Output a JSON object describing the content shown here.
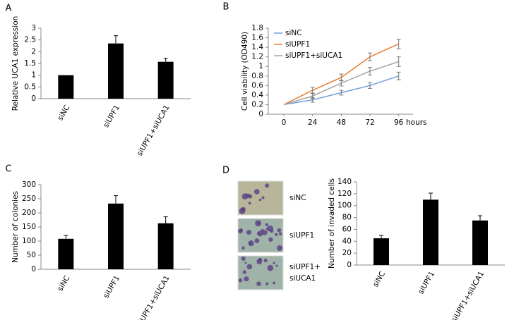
{
  "chart_data": [
    {
      "type": "bar",
      "panel_label": "A",
      "y_label": "Relative UCA1 expression",
      "categories": [
        "siNC",
        "siUPF1",
        "siUPF1+siUCA1"
      ],
      "values": [
        1,
        2.35,
        1.57
      ],
      "errors": [
        null,
        0.33,
        0.15
      ],
      "color": "#000000",
      "ylim": [
        0,
        3
      ],
      "yticks": [
        0,
        0.5,
        1,
        1.5,
        2,
        2.5,
        3
      ]
    },
    {
      "type": "line",
      "panel_label": "B",
      "y_label": "Cell viability (OD490)",
      "x_label": "hours",
      "x": [
        0,
        24,
        48,
        72,
        96
      ],
      "xlim": [
        -13,
        108
      ],
      "series": [
        {
          "name": "siNC",
          "color": "#6f9fd8",
          "values": [
            0.2,
            0.3,
            0.45,
            0.6,
            0.8
          ],
          "errors": [
            null,
            0.05,
            0.05,
            0.06,
            0.08
          ]
        },
        {
          "name": "siUPF1",
          "color": "#ed7d31",
          "values": [
            0.2,
            0.5,
            0.77,
            1.2,
            1.47
          ],
          "errors": [
            null,
            0.06,
            0.07,
            0.08,
            0.1
          ]
        },
        {
          "name": "siUPF1+siUCA1",
          "color": "#a5a5a5",
          "values": [
            0.2,
            0.38,
            0.65,
            0.9,
            1.1
          ],
          "errors": [
            null,
            0.05,
            0.06,
            0.08,
            0.1
          ]
        }
      ],
      "ylim": [
        0,
        1.8
      ],
      "yticks": [
        0,
        0.2,
        0.4,
        0.6,
        0.8,
        1,
        1.2,
        1.4,
        1.6,
        1.8
      ],
      "legend": "top-left"
    },
    {
      "type": "bar",
      "panel_label": "C",
      "y_label": "Number of colonies",
      "categories": [
        "siNC",
        "siUPF1",
        "siUPF1+siUCA1"
      ],
      "values": [
        108,
        233,
        163
      ],
      "errors": [
        12,
        28,
        23
      ],
      "color": "#000000",
      "ylim": [
        0,
        300
      ],
      "yticks": [
        0,
        50,
        100,
        150,
        200,
        250,
        300
      ]
    },
    {
      "type": "bar",
      "panel_label": "D",
      "y_label": "Number of invaded cells",
      "image_labels": [
        [
          "siNC"
        ],
        [
          "siUPF1"
        ],
        [
          "siUPF1+",
          "siUCA1"
        ]
      ],
      "categories": [
        "siNC",
        "siUPF1",
        "siUPF1+siUCA1"
      ],
      "values": [
        45,
        110,
        75
      ],
      "errors": [
        5,
        11,
        8
      ],
      "color": "#000000",
      "ylim": [
        0,
        140
      ],
      "yticks": [
        0,
        20,
        40,
        60,
        80,
        100,
        120,
        140
      ]
    }
  ]
}
